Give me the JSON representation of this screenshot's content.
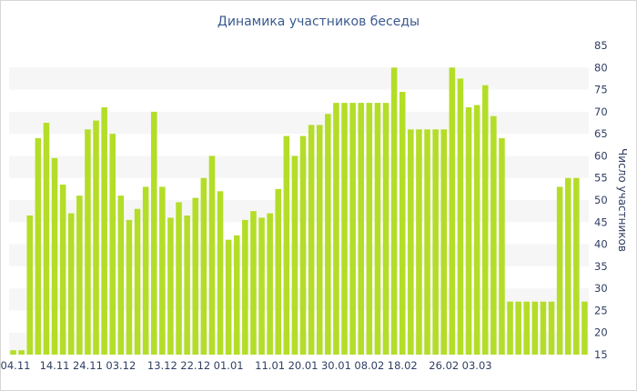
{
  "chart_data": {
    "type": "bar",
    "title": "Динамика участников беседы",
    "xlabel": "",
    "ylabel": "Число участников",
    "ylim": [
      15,
      85
    ],
    "yticks": [
      15,
      20,
      25,
      30,
      35,
      40,
      45,
      50,
      55,
      60,
      65,
      70,
      75,
      80,
      85
    ],
    "xtick_labels": [
      "04.11",
      "14.11",
      "24.11",
      "03.12",
      "13.12",
      "22.12",
      "01.01",
      "11.01",
      "20.01",
      "30.01",
      "08.02",
      "18.02",
      "26.02",
      "03.03"
    ],
    "xtick_positions": [
      0,
      5,
      9,
      13,
      18,
      22,
      26,
      31,
      35,
      39,
      43,
      47,
      52,
      56
    ],
    "bar_color": "#b4dd28",
    "band_color": "#f6f6f6",
    "values": [
      16,
      16,
      46.5,
      64,
      67.5,
      59.5,
      53.5,
      47,
      51,
      66,
      68,
      71,
      65,
      51,
      45.5,
      48,
      53,
      70,
      53,
      46,
      49.5,
      46.5,
      50.5,
      55,
      60,
      52,
      41,
      42,
      45.5,
      47.5,
      46,
      47,
      52.5,
      64.5,
      60,
      64.5,
      67,
      67,
      69.5,
      72,
      72,
      72,
      72,
      72,
      72,
      72,
      80,
      74.5,
      66,
      66,
      66,
      66,
      66,
      80,
      77.5,
      71,
      71.5,
      76,
      69,
      64,
      27,
      27,
      27,
      27,
      27,
      27,
      53,
      55,
      55,
      27
    ]
  }
}
